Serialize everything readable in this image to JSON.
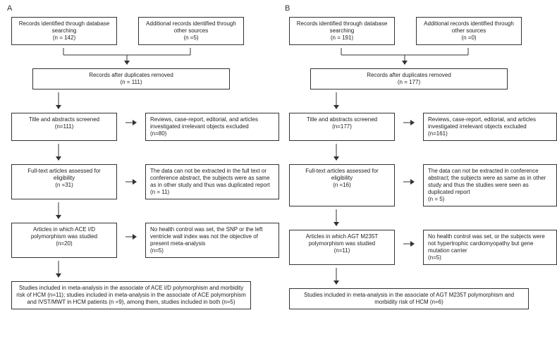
{
  "panels": {
    "A": {
      "label": "A",
      "top_left": "Records identified through database searching\n(n = 142)",
      "top_right": "Additional records identified through other sources\n(n =5)",
      "dedup": "Records after duplicates removed\n(n = 111)",
      "screen_left": "Title and abstracts screened\n(n=111)",
      "screen_right": "Reviews, case-report, editorial, and articles investigated irrelevant objects excluded\n(n=80)",
      "full_left": "Full-text articles assessed for eligibility\n(n =31)",
      "full_right": "The data can not be extracted in the full text or conference abstract, the subjects were as same as in other study and thus was duplicated report\n(n = 11)",
      "poly_left": "Articles in which ACE I/D polymorphism was studied\n(n=20)",
      "poly_right": "No health control was set, the SNP or the left ventricle wall index was not the objective of present meta-analysis\n(n=5)",
      "final": "Studies included in meta-analysis in the associate of ACE I/D polymorphism and morbidity risk of HCM (n=11); studies included in meta-analysis in the associate of ACE polymorphism and IVST/MWT in HCM patients (n =9), among them, studies included in both (n=5)"
    },
    "B": {
      "label": "B",
      "top_left": "Records identified through database searching\n(n = 191)",
      "top_right": "Additional records identified through other sources\n(n =0)",
      "dedup": "Records after duplicates removed\n(n = 177)",
      "screen_left": "Title and abstracts screened\n(n=177)",
      "screen_right": "Reviews, case-report, editorial, and articles investigated irrelevant objects excluded\n(n=161)",
      "full_left": "Full-text articles assessed for eligibility\n(n =16)",
      "full_right": "The data can not be extracted in conference abstract; the subjects were as same as in other study and thus the studies were seen as duplicated report\n(n = 5)",
      "poly_left": "Articles in which AGT M235T polymorphism was studied\n(n=11)",
      "poly_right": "No health control was set, or the subjects were not hypertrophic cardiomyopathy but gene mutation carrier\n(n=5)",
      "final": "Studies included in meta-analysis in the associate of AGT M235T polymorphism and morbidity risk of HCM (n=6)"
    }
  },
  "style": {
    "bg": "#ffffff",
    "border": "#333333",
    "text": "#222222",
    "fontsize_box": 8,
    "fontsize_label": 11,
    "arrow_stroke": "#333333",
    "arrow_width": 1
  }
}
